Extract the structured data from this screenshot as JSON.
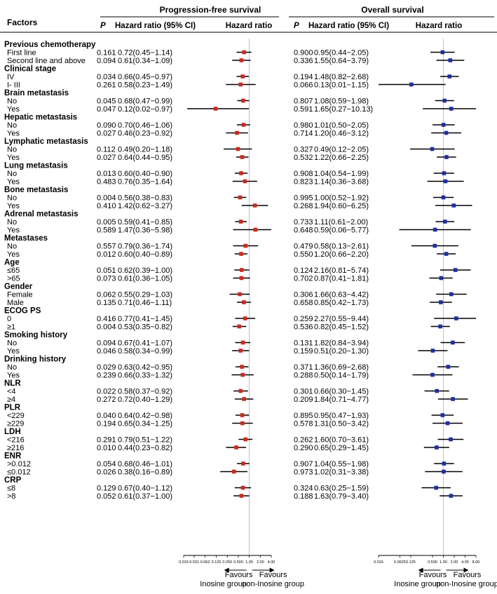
{
  "chart_data": {
    "type": "forest",
    "headers": {
      "factors": "Factors",
      "pfs_title": "Progression-free survival",
      "os_title": "Overall survival",
      "p": "P",
      "hr_ci": "Hazard ratio (95% CI)",
      "hr": "Hazard ratio"
    },
    "pfs_axis": {
      "ticks": [
        0.016,
        0.031,
        0.062,
        0.125,
        0.25,
        0.5,
        1,
        2,
        4
      ],
      "tick_labels": [
        "0.016",
        "0.031",
        "0.062",
        "0.125",
        "0.250",
        "0.500",
        "1.00",
        "2.00",
        "4.00"
      ],
      "range": [
        0.016,
        4
      ],
      "reference": 1,
      "favours_left": [
        "Favours",
        "Inosine group"
      ],
      "favours_right": [
        "Favours",
        "non-Inosine group"
      ],
      "marker_color": "#cc2a1e"
    },
    "os_axis": {
      "ticks": [
        0.016,
        0.0625,
        0.125,
        0.5,
        1,
        2,
        4,
        8
      ],
      "tick_labels": [
        "0.016",
        "0.0625",
        "0.125",
        "0.500",
        "1.00",
        "2.00",
        "4.00",
        "8.00"
      ],
      "range": [
        0.016,
        8
      ],
      "reference": 1,
      "favours_left": [
        "Favours",
        "Inosine group"
      ],
      "favours_right": [
        "Favours",
        "non-Inosine group"
      ],
      "marker_color": "#1f2fa0"
    },
    "groups": [
      {
        "name": "Previous chemotherapy",
        "rows": [
          {
            "label": "First line",
            "pfs": {
              "p": "0.161",
              "text": "0.72(0.45−1.14)",
              "hr": 0.72,
              "lo": 0.45,
              "hi": 1.14
            },
            "os": {
              "p": "0.900",
              "text": "0.95(0.44−2.05)",
              "hr": 0.95,
              "lo": 0.44,
              "hi": 2.05
            }
          },
          {
            "label": "Second line and above",
            "pfs": {
              "p": "0.094",
              "text": "0.61(0.34−1.09)",
              "hr": 0.61,
              "lo": 0.34,
              "hi": 1.09
            },
            "os": {
              "p": "0.336",
              "text": "1.55(0.64−3.79)",
              "hr": 1.55,
              "lo": 0.64,
              "hi": 3.79
            }
          }
        ]
      },
      {
        "name": "Clinical stage",
        "rows": [
          {
            "label": "IV",
            "pfs": {
              "p": "0.034",
              "text": "0.66(0.45−0.97)",
              "hr": 0.66,
              "lo": 0.45,
              "hi": 0.97
            },
            "os": {
              "p": "0.194",
              "text": "1.48(0.82−2.68)",
              "hr": 1.48,
              "lo": 0.82,
              "hi": 2.68
            }
          },
          {
            "label": "I- III",
            "pfs": {
              "p": "0.261",
              "text": "0.58(0.23−1.49)",
              "hr": 0.58,
              "lo": 0.23,
              "hi": 1.49
            },
            "os": {
              "p": "0.066",
              "text": "0.13(0.01−1.15)",
              "hr": 0.13,
              "lo": 0.01,
              "hi": 1.15
            }
          }
        ]
      },
      {
        "name": "Brain metastasis",
        "rows": [
          {
            "label": "No",
            "pfs": {
              "p": "0.045",
              "text": "0.68(0.47−0.99)",
              "hr": 0.68,
              "lo": 0.47,
              "hi": 0.99
            },
            "os": {
              "p": "0.807",
              "text": "1.08(0.59−1.98)",
              "hr": 1.08,
              "lo": 0.59,
              "hi": 1.98
            }
          },
          {
            "label": "Yes",
            "pfs": {
              "p": "0.047",
              "text": "0.12(0.02−0.97)",
              "hr": 0.12,
              "lo": 0.02,
              "hi": 0.97
            },
            "os": {
              "p": "0.591",
              "text": "1.65(0.27−10.13)",
              "hr": 1.65,
              "lo": 0.27,
              "hi": 10.13
            }
          }
        ]
      },
      {
        "name": "Hepatic metastasis",
        "rows": [
          {
            "label": "No",
            "pfs": {
              "p": "0.090",
              "text": "0.70(0.46−1.06)",
              "hr": 0.7,
              "lo": 0.46,
              "hi": 1.06
            },
            "os": {
              "p": "0.980",
              "text": "1.01(0.50−2.05)",
              "hr": 1.01,
              "lo": 0.5,
              "hi": 2.05
            }
          },
          {
            "label": "Yes",
            "pfs": {
              "p": "0.027",
              "text": "0.46(0.23−0.92)",
              "hr": 0.46,
              "lo": 0.23,
              "hi": 0.92
            },
            "os": {
              "p": "0.714",
              "text": "1.20(0.46−3.12)",
              "hr": 1.2,
              "lo": 0.46,
              "hi": 3.12
            }
          }
        ]
      },
      {
        "name": "Lymphatic metastasis",
        "rows": [
          {
            "label": "No",
            "pfs": {
              "p": "0.112",
              "text": "0.49(0.20−1.18)",
              "hr": 0.49,
              "lo": 0.2,
              "hi": 1.18
            },
            "os": {
              "p": "0.327",
              "text": "0.49(0.12−2.05)",
              "hr": 0.49,
              "lo": 0.12,
              "hi": 2.05
            }
          },
          {
            "label": "Yes",
            "pfs": {
              "p": "0.027",
              "text": "0.64(0.44−0.95)",
              "hr": 0.64,
              "lo": 0.44,
              "hi": 0.95
            },
            "os": {
              "p": "0.532",
              "text": "1.22(0.66−2.25)",
              "hr": 1.22,
              "lo": 0.66,
              "hi": 2.25
            }
          }
        ]
      },
      {
        "name": "Lung metastasis",
        "rows": [
          {
            "label": "No",
            "pfs": {
              "p": "0.013",
              "text": "0.60(0.40−0.90)",
              "hr": 0.6,
              "lo": 0.4,
              "hi": 0.9
            },
            "os": {
              "p": "0.908",
              "text": "1.04(0.54−1.99)",
              "hr": 1.04,
              "lo": 0.54,
              "hi": 1.99
            }
          },
          {
            "label": "Yes",
            "pfs": {
              "p": "0.483",
              "text": "0.76(0.35−1.64)",
              "hr": 0.76,
              "lo": 0.35,
              "hi": 1.64
            },
            "os": {
              "p": "0.823",
              "text": "1.14(0.36−3.68)",
              "hr": 1.14,
              "lo": 0.36,
              "hi": 3.68
            }
          }
        ]
      },
      {
        "name": "Bone metastasis",
        "rows": [
          {
            "label": "No",
            "pfs": {
              "p": "0.004",
              "text": "0.56(0.38−0.83)",
              "hr": 0.56,
              "lo": 0.38,
              "hi": 0.83
            },
            "os": {
              "p": "0.995",
              "text": "1.00(0.52−1.92)",
              "hr": 1.0,
              "lo": 0.52,
              "hi": 1.92
            }
          },
          {
            "label": "Yes",
            "pfs": {
              "p": "0.410",
              "text": "1.42(0.62−3.27)",
              "hr": 1.42,
              "lo": 0.62,
              "hi": 3.27
            },
            "os": {
              "p": "0.268",
              "text": "1.94(0.60−6.25)",
              "hr": 1.94,
              "lo": 0.6,
              "hi": 6.25
            }
          }
        ]
      },
      {
        "name": "Adrenal metastasis",
        "rows": [
          {
            "label": "No",
            "pfs": {
              "p": "0.005",
              "text": "0.59(0.41−0.85)",
              "hr": 0.59,
              "lo": 0.41,
              "hi": 0.85
            },
            "os": {
              "p": "0.733",
              "text": "1.11(0.61−2.00)",
              "hr": 1.11,
              "lo": 0.61,
              "hi": 2.0
            }
          },
          {
            "label": "Yes",
            "pfs": {
              "p": "0.589",
              "text": "1.47(0.36−5.98)",
              "hr": 1.47,
              "lo": 0.36,
              "hi": 5.98
            },
            "os": {
              "p": "0.648",
              "text": "0.59(0.06−5.77)",
              "hr": 0.59,
              "lo": 0.06,
              "hi": 5.77
            }
          }
        ]
      },
      {
        "name": "Metastases",
        "rows": [
          {
            "label": "No",
            "pfs": {
              "p": "0.557",
              "text": "0.79(0.36−1.74)",
              "hr": 0.79,
              "lo": 0.36,
              "hi": 1.74
            },
            "os": {
              "p": "0.479",
              "text": "0.58(0.13−2.61)",
              "hr": 0.58,
              "lo": 0.13,
              "hi": 2.61
            }
          },
          {
            "label": "Yes",
            "pfs": {
              "p": "0.012",
              "text": "0.60(0.40−0.89)",
              "hr": 0.6,
              "lo": 0.4,
              "hi": 0.89
            },
            "os": {
              "p": "0.550",
              "text": "1.20(0.66−2.20)",
              "hr": 1.2,
              "lo": 0.66,
              "hi": 2.2
            }
          }
        ]
      },
      {
        "name": "Age",
        "rows": [
          {
            "label": "≤65",
            "pfs": {
              "p": "0.051",
              "text": "0.62(0.39−1.00)",
              "hr": 0.62,
              "lo": 0.39,
              "hi": 1.0
            },
            "os": {
              "p": "0.124",
              "text": "2.16(0.81−5.74)",
              "hr": 2.16,
              "lo": 0.81,
              "hi": 5.74
            }
          },
          {
            "label": ">65",
            "pfs": {
              "p": "0.073",
              "text": "0.61(0.36−1.05)",
              "hr": 0.61,
              "lo": 0.36,
              "hi": 1.05
            },
            "os": {
              "p": "0.702",
              "text": "0.87(0.41−1.81)",
              "hr": 0.87,
              "lo": 0.41,
              "hi": 1.81
            }
          }
        ]
      },
      {
        "name": "Gender",
        "rows": [
          {
            "label": "Female",
            "pfs": {
              "p": "0.062",
              "text": "0.55(0.29−1.03)",
              "hr": 0.55,
              "lo": 0.29,
              "hi": 1.03
            },
            "os": {
              "p": "0.306",
              "text": "1.66(0.63−4.42)",
              "hr": 1.66,
              "lo": 0.63,
              "hi": 4.42
            }
          },
          {
            "label": "Male",
            "pfs": {
              "p": "0.135",
              "text": "0.71(0.46−1.11)",
              "hr": 0.71,
              "lo": 0.46,
              "hi": 1.11
            },
            "os": {
              "p": "0.658",
              "text": "0.85(0.42−1.73)",
              "hr": 0.85,
              "lo": 0.42,
              "hi": 1.73
            }
          }
        ]
      },
      {
        "name": "ECOG PS",
        "rows": [
          {
            "label": "0",
            "pfs": {
              "p": "0.416",
              "text": "0.77(0.41−1.45)",
              "hr": 0.77,
              "lo": 0.41,
              "hi": 1.45
            },
            "os": {
              "p": "0.259",
              "text": "2.27(0.55−9.44)",
              "hr": 2.27,
              "lo": 0.55,
              "hi": 9.44
            }
          },
          {
            "label": "≥1",
            "pfs": {
              "p": "0.004",
              "text": "0.53(0.35−0.82)",
              "hr": 0.53,
              "lo": 0.35,
              "hi": 0.82
            },
            "os": {
              "p": "0.536",
              "text": "0.82(0.45−1.52)",
              "hr": 0.82,
              "lo": 0.45,
              "hi": 1.52
            }
          }
        ]
      },
      {
        "name": "Smoking history",
        "rows": [
          {
            "label": "No",
            "pfs": {
              "p": "0.094",
              "text": "0.67(0.41−1.07)",
              "hr": 0.67,
              "lo": 0.41,
              "hi": 1.07
            },
            "os": {
              "p": "0.131",
              "text": "1.82(0.84−3.94)",
              "hr": 1.82,
              "lo": 0.84,
              "hi": 3.94
            }
          },
          {
            "label": "Yes",
            "pfs": {
              "p": "0.046",
              "text": "0.58(0.34−0.99)",
              "hr": 0.58,
              "lo": 0.34,
              "hi": 0.99
            },
            "os": {
              "p": "0.159",
              "text": "0.51(0.20−1.30)",
              "hr": 0.51,
              "lo": 0.2,
              "hi": 1.3
            }
          }
        ]
      },
      {
        "name": "Drinking history",
        "rows": [
          {
            "label": "No",
            "pfs": {
              "p": "0.029",
              "text": "0.63(0.42−0.95)",
              "hr": 0.63,
              "lo": 0.42,
              "hi": 0.95
            },
            "os": {
              "p": "0.371",
              "text": "1.36(0.69−2.68)",
              "hr": 1.36,
              "lo": 0.69,
              "hi": 2.68
            }
          },
          {
            "label": "Yes",
            "pfs": {
              "p": "0.239",
              "text": "0.66(0.33−1.32)",
              "hr": 0.66,
              "lo": 0.33,
              "hi": 1.32
            },
            "os": {
              "p": "0.288",
              "text": "0.50(0.14−1.79)",
              "hr": 0.5,
              "lo": 0.14,
              "hi": 1.79
            }
          }
        ]
      },
      {
        "name": "NLR",
        "rows": [
          {
            "label": "<4",
            "pfs": {
              "p": "0.022",
              "text": "0.58(0.37−0.92)",
              "hr": 0.58,
              "lo": 0.37,
              "hi": 0.92
            },
            "os": {
              "p": "0.301",
              "text": "0.66(0.30−1.45)",
              "hr": 0.66,
              "lo": 0.3,
              "hi": 1.45
            }
          },
          {
            "label": "≥4",
            "pfs": {
              "p": "0.272",
              "text": "0.72(0.40−1.29)",
              "hr": 0.72,
              "lo": 0.4,
              "hi": 1.29
            },
            "os": {
              "p": "0.209",
              "text": "1.84(0.71−4.77)",
              "hr": 1.84,
              "lo": 0.71,
              "hi": 4.77
            }
          }
        ]
      },
      {
        "name": "PLR",
        "rows": [
          {
            "label": "<229",
            "pfs": {
              "p": "0.040",
              "text": "0.64(0.42−0.98)",
              "hr": 0.64,
              "lo": 0.42,
              "hi": 0.98
            },
            "os": {
              "p": "0.895",
              "text": "0.95(0.47−1.93)",
              "hr": 0.95,
              "lo": 0.47,
              "hi": 1.93
            }
          },
          {
            "label": "≥229",
            "pfs": {
              "p": "0.194",
              "text": "0.65(0.34−1.25)",
              "hr": 0.65,
              "lo": 0.34,
              "hi": 1.25
            },
            "os": {
              "p": "0.578",
              "text": "1.31(0.50−3.42)",
              "hr": 1.31,
              "lo": 0.5,
              "hi": 3.42
            }
          }
        ]
      },
      {
        "name": "LDH",
        "rows": [
          {
            "label": "<216",
            "pfs": {
              "p": "0.291",
              "text": "0.79(0.51−1.22)",
              "hr": 0.79,
              "lo": 0.51,
              "hi": 1.22
            },
            "os": {
              "p": "0.262",
              "text": "1.60(0.70−3.61)",
              "hr": 1.6,
              "lo": 0.7,
              "hi": 3.61
            }
          },
          {
            "label": "≥216",
            "pfs": {
              "p": "0.010",
              "text": "0.44(0.23−0.82)",
              "hr": 0.44,
              "lo": 0.23,
              "hi": 0.82
            },
            "os": {
              "p": "0.290",
              "text": "0.65(0.29−1.45)",
              "hr": 0.65,
              "lo": 0.29,
              "hi": 1.45
            }
          }
        ]
      },
      {
        "name": "ENR",
        "rows": [
          {
            "label": ">0.012",
            "pfs": {
              "p": "0.054",
              "text": "0.68(0.46−1.01)",
              "hr": 0.68,
              "lo": 0.46,
              "hi": 1.01
            },
            "os": {
              "p": "0.907",
              "text": "1.04(0.55−1.98)",
              "hr": 1.04,
              "lo": 0.55,
              "hi": 1.98
            }
          },
          {
            "label": "≤0.012",
            "pfs": {
              "p": "0.026",
              "text": "0.38(0.16−0.89)",
              "hr": 0.38,
              "lo": 0.16,
              "hi": 0.89
            },
            "os": {
              "p": "0.973",
              "text": "1.02(0.31−3.38)",
              "hr": 1.02,
              "lo": 0.31,
              "hi": 3.38
            }
          }
        ]
      },
      {
        "name": "CRP",
        "rows": [
          {
            "label": "≤8",
            "pfs": {
              "p": "0.129",
              "text": "0.67(0.40−1.12)",
              "hr": 0.67,
              "lo": 0.4,
              "hi": 1.12
            },
            "os": {
              "p": "0.324",
              "text": "0.63(0.25−1.59)",
              "hr": 0.63,
              "lo": 0.25,
              "hi": 1.59
            }
          },
          {
            "label": ">8",
            "pfs": {
              "p": "0.052",
              "text": "0.61(0.37−1.00)",
              "hr": 0.61,
              "lo": 0.37,
              "hi": 1.0
            },
            "os": {
              "p": "0.188",
              "text": "1.63(0.79−3.40)",
              "hr": 1.63,
              "lo": 0.79,
              "hi": 3.4
            }
          }
        ]
      }
    ]
  }
}
